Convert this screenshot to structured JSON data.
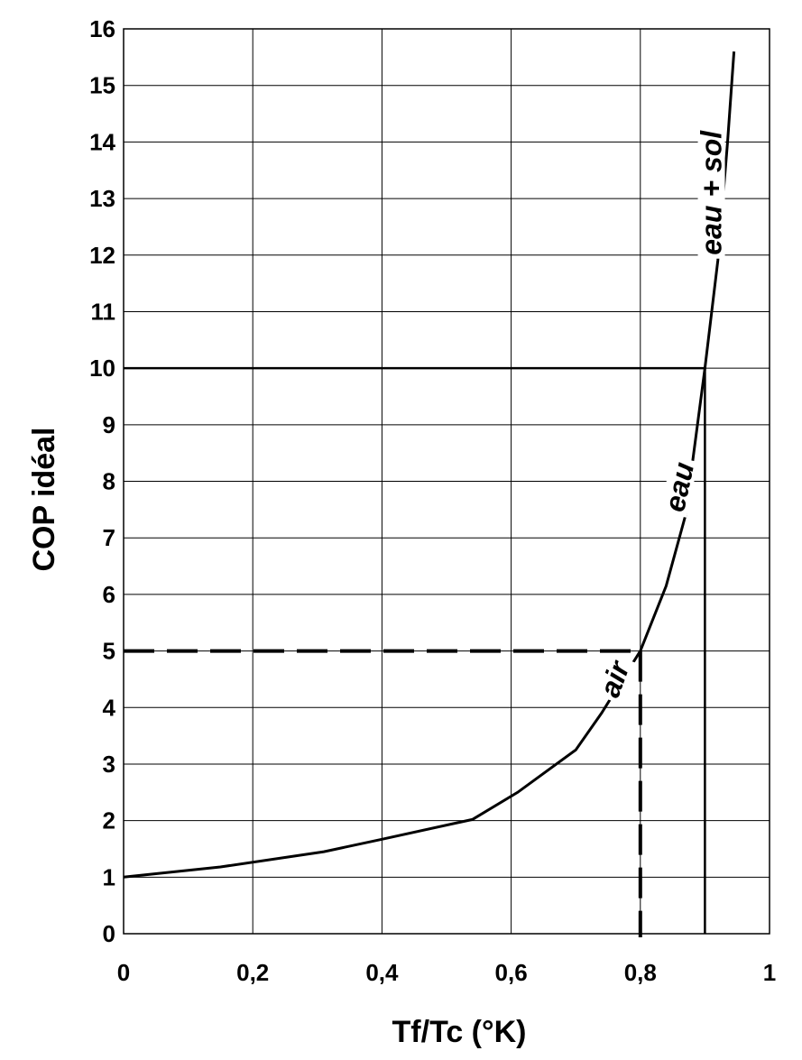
{
  "chart_data": {
    "type": "line",
    "title": "",
    "xlabel": "Tf/Tc  (°K)",
    "ylabel": "COP idéal",
    "xlim": [
      0,
      1
    ],
    "ylim": [
      0,
      16
    ],
    "grid": true,
    "x_ticks": [
      0,
      0.2,
      0.4,
      0.6,
      0.8,
      1
    ],
    "x_tick_labels": [
      "0",
      "0,2",
      "0,4",
      "0,6",
      "0,8",
      "1"
    ],
    "y_ticks": [
      0,
      1,
      2,
      3,
      4,
      5,
      6,
      7,
      8,
      9,
      10,
      11,
      12,
      13,
      14,
      15,
      16
    ],
    "y_tick_labels": [
      "0",
      "1",
      "2",
      "3",
      "4",
      "5",
      "6",
      "7",
      "8",
      "9",
      "10",
      "11",
      "12",
      "13",
      "14",
      "15",
      "16"
    ],
    "series": [
      {
        "x": [
          0,
          0.15,
          0.31,
          0.4,
          0.54,
          0.61,
          0.7,
          0.74,
          0.8,
          0.84,
          0.87,
          0.9,
          0.92,
          0.935,
          0.945
        ],
        "y": [
          1,
          1.18,
          1.45,
          1.67,
          2.02,
          2.5,
          3.25,
          3.9,
          5,
          6.15,
          7.4,
          10,
          11.9,
          14,
          15.6
        ]
      }
    ],
    "reference_lines": [
      {
        "style": "dashed",
        "x": 0.8,
        "y": 5
      },
      {
        "style": "solid",
        "x": 0.9,
        "y": 10
      }
    ],
    "annotations": [
      {
        "text": "air",
        "x": 0.76,
        "y": 4.5,
        "rotate": -70
      },
      {
        "text": "eau",
        "x": 0.86,
        "y": 7.9,
        "rotate": -78
      },
      {
        "text": "eau + sol",
        "x": 0.91,
        "y": 13.1,
        "rotate": -90
      }
    ]
  }
}
